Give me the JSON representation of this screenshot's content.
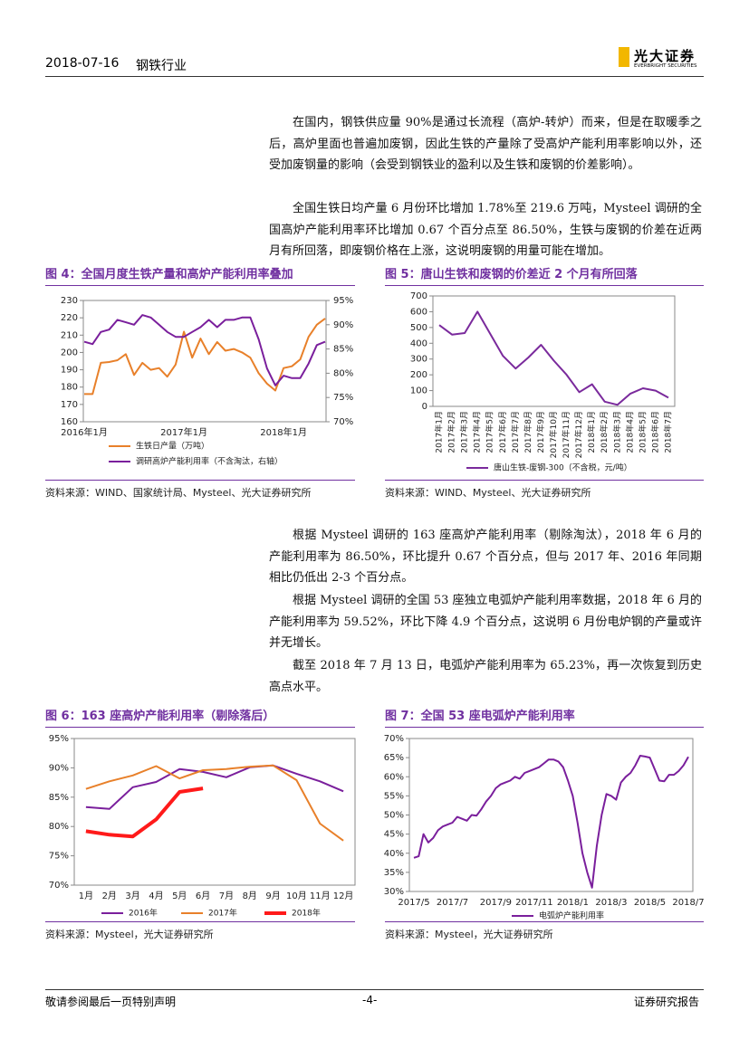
{
  "header": {
    "date": "2018-07-16",
    "industry": "钢铁行业",
    "logo": "光大证券",
    "logo_en": "EVERBRIGHT SECURITIES"
  },
  "paragraphs": [
    "在国内，钢铁供应量 90%是通过长流程（高炉-转炉）而来，但是在取暖季之后，高炉里面也普遍加废钢，因此生铁的产量除了受高炉产能利用率影响以外，还受加废钢量的影响（会受到钢铁业的盈利以及生铁和废钢的价差影响）。",
    "全国生铁日均产量 6 月份环比增加 1.78%至 219.6 万吨，Mysteel 调研的全国高炉产能利用率环比增加 0.67 个百分点至 86.50%，生铁与废钢的价差在近两月有所回落，即废钢价格在上涨，这说明废钢的用量可能在增加。",
    "根据 Mysteel 调研的 163 座高炉产能利用率（剔除淘汰），2018 年 6 月的产能利用率为 86.50%，环比提升 0.67 个百分点，但与 2017 年、2016 年同期相比仍低出 2-3 个百分点。",
    "根据 Mysteel 调研的全国 53 座独立电弧炉产能利用率数据，2018 年 6 月的产能利用率为 59.52%，环比下降 4.9 个百分点，这说明 6 月份电炉钢的产量或许并无增长。",
    "截至 2018 年 7 月 13 日，电弧炉产能利用率为 65.23%，再一次恢复到历史高点水平。"
  ],
  "chart_data": [
    {
      "type": "line",
      "title": "图 4：全国月度生铁产量和高炉产能利用率叠加",
      "source": "资料来源：WIND、国家统计局、Mysteel、光大证券研究所",
      "categories": [
        "2016年1月",
        null,
        null,
        null,
        null,
        null,
        null,
        null,
        null,
        null,
        null,
        null,
        "2017年1月",
        null,
        null,
        null,
        null,
        null,
        null,
        null,
        null,
        null,
        null,
        null,
        "2018年1月",
        null,
        null,
        null,
        null,
        null
      ],
      "series": [
        {
          "name": "生铁日产量（万吨）",
          "color": "#e8802a",
          "values": [
            176,
            176,
            194,
            194.5,
            195.5,
            199,
            187,
            194,
            190,
            191,
            186,
            193,
            212,
            197,
            208,
            199,
            206,
            201,
            202,
            200,
            197,
            188,
            182,
            178,
            191,
            192,
            196,
            209,
            216,
            219.6
          ]
        },
        {
          "name": "调研高炉产能利用率（不含淘汰，右轴）",
          "color": "#7a1f9c",
          "axis": "y2",
          "values": [
            86.5,
            86,
            88.5,
            89,
            91,
            90.5,
            90,
            92,
            91.5,
            90,
            88.5,
            87.5,
            87.5,
            88.5,
            89.5,
            91,
            89.5,
            91,
            91,
            91.5,
            91.5,
            87,
            81,
            77.5,
            79.5,
            79,
            79,
            82,
            85.8,
            86.5
          ]
        }
      ],
      "ylim": [
        160,
        230
      ],
      "yticks": [
        160,
        170,
        180,
        190,
        200,
        210,
        220,
        230
      ],
      "y2lim": [
        70,
        95
      ],
      "y2ticks": [
        {
          "value": 70,
          "label": "70%"
        },
        {
          "value": 75,
          "label": "75%"
        },
        {
          "value": 80,
          "label": "80%"
        },
        {
          "value": 85,
          "label": "85%"
        },
        {
          "value": 90,
          "label": "90%"
        },
        {
          "value": 95,
          "label": "95%"
        }
      ]
    },
    {
      "type": "line",
      "title": "图 5：唐山生铁和废钢的价差近 2 个月有所回落",
      "source": "资料来源：WIND、Mysteel、光大证券研究所",
      "categories": [
        "2017年1月",
        "2017年2月",
        "2017年3月",
        "2017年4月",
        "2017年5月",
        "2017年6月",
        "2017年7月",
        "2017年8月",
        "2017年9月",
        "2017年10月",
        "2017年11月",
        "2017年12月",
        "2018年1月",
        "2018年2月",
        "2018年3月",
        "2018年4月",
        "2018年5月",
        "2018年6月",
        "2018年7月"
      ],
      "series": [
        {
          "name": "唐山生铁-废钢-300（不含税，元/吨）",
          "color": "#7a2a9c",
          "values": [
            515,
            455,
            465,
            600,
            460,
            320,
            240,
            310,
            390,
            290,
            200,
            90,
            140,
            30,
            10,
            80,
            115,
            100,
            55
          ]
        }
      ],
      "ylim": [
        0,
        700
      ],
      "yticks": [
        0,
        100,
        200,
        300,
        400,
        500,
        600,
        700
      ]
    },
    {
      "type": "line",
      "title": "图 6：163 座高炉产能利用率（剔除落后）",
      "source": "资料来源：Mysteel，光大证券研究所",
      "categories": [
        "1月",
        "2月",
        "3月",
        "4月",
        "5月",
        "6月",
        "7月",
        "8月",
        "9月",
        "10月",
        "11月",
        "12月"
      ],
      "series": [
        {
          "name": "2016年",
          "color": "#7a1f9c",
          "width": 2,
          "values": [
            83.3,
            83,
            86.7,
            87.6,
            89.8,
            89.3,
            88.4,
            90.1,
            90.4,
            89,
            87.7,
            86
          ]
        },
        {
          "name": "2017年",
          "color": "#e8802a",
          "width": 2,
          "values": [
            86.4,
            87.7,
            88.7,
            90.3,
            88.2,
            89.6,
            89.8,
            90.2,
            90.4,
            87.9,
            80.5,
            77.6
          ]
        },
        {
          "name": "2018年",
          "color": "#ff1a1a",
          "width": 4,
          "values": [
            79.2,
            78.6,
            78.3,
            81.2,
            85.9,
            86.5,
            null,
            null,
            null,
            null,
            null,
            null
          ]
        }
      ],
      "ylim": [
        70,
        95
      ],
      "yticks": [
        {
          "value": 70,
          "label": "70%"
        },
        {
          "value": 75,
          "label": "75%"
        },
        {
          "value": 80,
          "label": "80%"
        },
        {
          "value": 85,
          "label": "85%"
        },
        {
          "value": 90,
          "label": "90%"
        },
        {
          "value": 95,
          "label": "95%"
        }
      ]
    },
    {
      "type": "line",
      "title": "图 7：全国 53 座电弧炉产能利用率",
      "source": "资料来源：Mysteel，光大证券研究所",
      "categories": [
        "2017/5",
        null,
        null,
        null,
        null,
        null,
        null,
        null,
        "2017/7",
        null,
        null,
        null,
        null,
        null,
        null,
        null,
        null,
        "2017/9",
        null,
        null,
        null,
        null,
        null,
        null,
        null,
        "2017/11",
        null,
        null,
        null,
        null,
        null,
        null,
        null,
        "2018/1",
        null,
        null,
        null,
        null,
        null,
        null,
        null,
        "2018/3",
        null,
        null,
        null,
        null,
        null,
        null,
        null,
        "2018/5",
        null,
        null,
        null,
        null,
        null,
        null,
        null,
        "2018/7"
      ],
      "series": [
        {
          "name": "电弧炉产能利用率",
          "color": "#7a1f9c",
          "values": [
            38.8,
            39.2,
            45,
            42.8,
            44,
            46,
            47,
            47.5,
            48,
            49.5,
            49,
            48.5,
            50,
            49.8,
            51.5,
            53.5,
            55,
            57,
            58,
            58.5,
            59,
            60,
            59.5,
            61,
            61.5,
            62,
            62.5,
            63.5,
            64.5,
            64.5,
            64,
            62.5,
            59,
            55,
            48,
            40,
            35,
            31,
            42,
            50,
            55.5,
            55,
            54,
            58.5,
            60,
            61,
            63,
            65.5,
            65.3,
            65,
            62,
            59,
            58.8,
            60.5,
            60.5,
            61.5,
            63,
            65.23
          ]
        }
      ],
      "ylim": [
        30,
        70
      ],
      "yticks": [
        {
          "value": 30,
          "label": "30%"
        },
        {
          "value": 35,
          "label": "35%"
        },
        {
          "value": 40,
          "label": "40%"
        },
        {
          "value": 45,
          "label": "45%"
        },
        {
          "value": 50,
          "label": "50%"
        },
        {
          "value": 55,
          "label": "55%"
        },
        {
          "value": 60,
          "label": "60%"
        },
        {
          "value": 65,
          "label": "65%"
        },
        {
          "value": 70,
          "label": "70%"
        }
      ]
    }
  ],
  "footer": {
    "left": "敬请参阅最后一页特别声明",
    "page": "-4-",
    "right": "证券研究报告"
  }
}
